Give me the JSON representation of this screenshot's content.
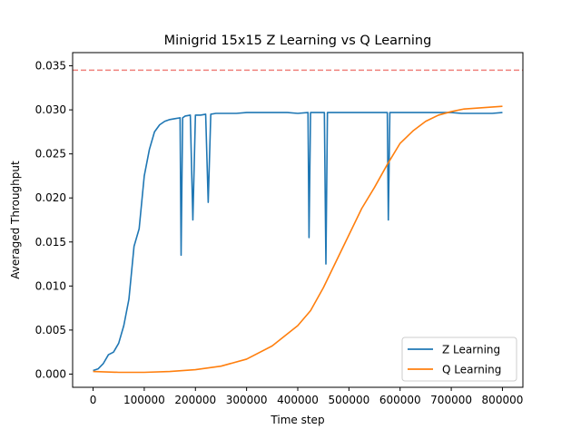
{
  "chart_data": {
    "type": "line",
    "title": "Minigrid 15x15 Z Learning vs Q Learning",
    "xlabel": "Time step",
    "ylabel": "Averaged Throughput",
    "xlim": [
      -40000,
      840000
    ],
    "ylim": [
      -0.0015,
      0.0365
    ],
    "x_ticks": [
      0,
      100000,
      200000,
      300000,
      400000,
      500000,
      600000,
      700000,
      800000
    ],
    "x_tick_labels": [
      "0",
      "100000",
      "200000",
      "300000",
      "400000",
      "500000",
      "600000",
      "700000",
      "800000"
    ],
    "y_ticks": [
      0.0,
      0.005,
      0.01,
      0.015,
      0.02,
      0.025,
      0.03,
      0.035
    ],
    "y_tick_labels": [
      "0.000",
      "0.005",
      "0.010",
      "0.015",
      "0.020",
      "0.025",
      "0.030",
      "0.035"
    ],
    "reference_line": {
      "y": 0.0345,
      "color": "#f0817c",
      "style": "dashed"
    },
    "grid": false,
    "legend_position": "lower-right",
    "series": [
      {
        "name": "Z Learning",
        "color": "#1f77b4",
        "points": [
          [
            0,
            0.0004
          ],
          [
            10000,
            0.0006
          ],
          [
            20000,
            0.0012
          ],
          [
            30000,
            0.0022
          ],
          [
            40000,
            0.0025
          ],
          [
            50000,
            0.0035
          ],
          [
            60000,
            0.0055
          ],
          [
            70000,
            0.0085
          ],
          [
            80000,
            0.0145
          ],
          [
            90000,
            0.0165
          ],
          [
            100000,
            0.0225
          ],
          [
            110000,
            0.0255
          ],
          [
            120000,
            0.0275
          ],
          [
            130000,
            0.0283
          ],
          [
            140000,
            0.0287
          ],
          [
            150000,
            0.0289
          ],
          [
            160000,
            0.029
          ],
          [
            170000,
            0.0291
          ],
          [
            172000,
            0.0135
          ],
          [
            175000,
            0.0291
          ],
          [
            180000,
            0.0293
          ],
          [
            190000,
            0.0294
          ],
          [
            195000,
            0.0175
          ],
          [
            200000,
            0.0294
          ],
          [
            210000,
            0.0294
          ],
          [
            220000,
            0.0295
          ],
          [
            225000,
            0.0195
          ],
          [
            230000,
            0.0295
          ],
          [
            240000,
            0.0296
          ],
          [
            250000,
            0.0296
          ],
          [
            260000,
            0.0296
          ],
          [
            280000,
            0.0296
          ],
          [
            300000,
            0.0297
          ],
          [
            320000,
            0.0297
          ],
          [
            340000,
            0.0297
          ],
          [
            360000,
            0.0297
          ],
          [
            380000,
            0.0297
          ],
          [
            400000,
            0.0296
          ],
          [
            420000,
            0.0297
          ],
          [
            422000,
            0.0155
          ],
          [
            425000,
            0.0297
          ],
          [
            440000,
            0.0297
          ],
          [
            452000,
            0.0297
          ],
          [
            455000,
            0.0125
          ],
          [
            458000,
            0.0297
          ],
          [
            480000,
            0.0297
          ],
          [
            500000,
            0.0297
          ],
          [
            520000,
            0.0297
          ],
          [
            540000,
            0.0297
          ],
          [
            560000,
            0.0297
          ],
          [
            575000,
            0.0297
          ],
          [
            577000,
            0.0175
          ],
          [
            580000,
            0.0297
          ],
          [
            600000,
            0.0297
          ],
          [
            620000,
            0.0297
          ],
          [
            640000,
            0.0297
          ],
          [
            660000,
            0.0297
          ],
          [
            680000,
            0.0297
          ],
          [
            700000,
            0.0297
          ],
          [
            720000,
            0.0296
          ],
          [
            740000,
            0.0296
          ],
          [
            760000,
            0.0296
          ],
          [
            780000,
            0.0296
          ],
          [
            800000,
            0.0297
          ]
        ]
      },
      {
        "name": "Q Learning",
        "color": "#ff7f0e",
        "points": [
          [
            0,
            0.0003
          ],
          [
            50000,
            0.0002
          ],
          [
            100000,
            0.0002
          ],
          [
            150000,
            0.0003
          ],
          [
            200000,
            0.0005
          ],
          [
            250000,
            0.0009
          ],
          [
            300000,
            0.0017
          ],
          [
            350000,
            0.0032
          ],
          [
            400000,
            0.0055
          ],
          [
            425000,
            0.0072
          ],
          [
            450000,
            0.0098
          ],
          [
            475000,
            0.0128
          ],
          [
            500000,
            0.0158
          ],
          [
            525000,
            0.0188
          ],
          [
            550000,
            0.0212
          ],
          [
            575000,
            0.0238
          ],
          [
            600000,
            0.0262
          ],
          [
            625000,
            0.0276
          ],
          [
            650000,
            0.0287
          ],
          [
            675000,
            0.0294
          ],
          [
            700000,
            0.0298
          ],
          [
            725000,
            0.0301
          ],
          [
            750000,
            0.0302
          ],
          [
            775000,
            0.0303
          ],
          [
            800000,
            0.0304
          ]
        ]
      }
    ]
  }
}
